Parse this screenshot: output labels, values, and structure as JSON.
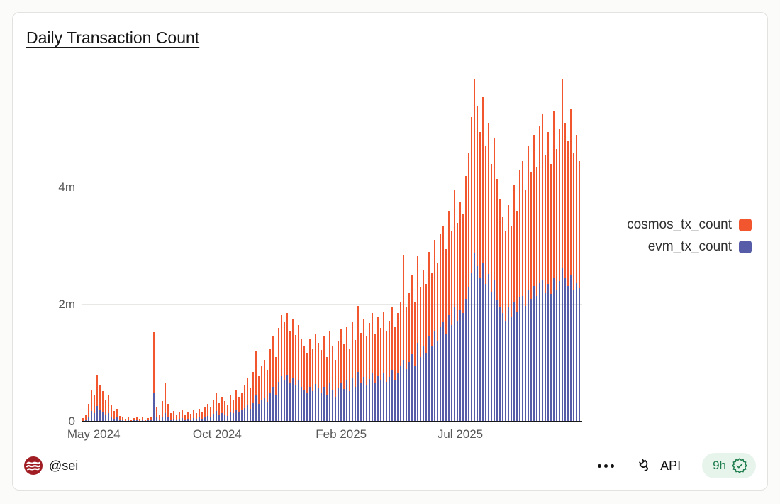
{
  "card": {
    "title": "Daily Transaction Count",
    "footer": {
      "author": "@sei",
      "api_label": "API",
      "updated_badge": "9h"
    }
  },
  "colors": {
    "cosmos": "#F1562F",
    "evm": "#575CA8",
    "sei_logo_red": "#A01D23",
    "badge_green": "#1C7C4B",
    "badge_bg": "#E7F4EC",
    "axis_line": "#1A1A1A",
    "grid": "#E8E8E6",
    "tick_text": "#575757"
  },
  "chart_data": {
    "type": "bar",
    "stacked": true,
    "title": "Daily Transaction Count",
    "unit": "daily transactions, values in millions (m)",
    "x_tick_labels": [
      "May 2024",
      "Oct 2024",
      "Feb 2025",
      "Jul 2025"
    ],
    "x_tick_positions": [
      0.023,
      0.27,
      0.518,
      0.756
    ],
    "x_range": [
      "May 2024",
      "Oct 2025"
    ],
    "y_tick_labels": [
      "0",
      "2m",
      "4m"
    ],
    "y_ticks_m": [
      0,
      2,
      4
    ],
    "ylim_m": [
      0,
      6
    ],
    "grid": true,
    "legend_position": "right",
    "series": [
      {
        "name": "cosmos_tx_count",
        "color": "#F1562F",
        "values_m": [
          0.05,
          0.09,
          0.21,
          0.37,
          0.31,
          0.53,
          0.42,
          0.36,
          0.26,
          0.3,
          0.19,
          0.13,
          0.15,
          0.07,
          0.05,
          0.04,
          0.06,
          0.03,
          0.04,
          0.06,
          0.04,
          0.05,
          0.03,
          0.04,
          0.06,
          1.03,
          0.18,
          0.09,
          0.27,
          0.5,
          0.22,
          0.1,
          0.13,
          0.08,
          0.11,
          0.14,
          0.08,
          0.12,
          0.09,
          0.13,
          0.1,
          0.15,
          0.11,
          0.16,
          0.2,
          0.17,
          0.25,
          0.32,
          0.21,
          0.27,
          0.23,
          0.18,
          0.28,
          0.24,
          0.34,
          0.26,
          0.31,
          0.39,
          0.47,
          0.36,
          0.53,
          0.75,
          0.48,
          0.59,
          0.65,
          0.54,
          0.75,
          0.85,
          0.65,
          0.92,
          1.04,
          0.98,
          1.06,
          0.89,
          1.0,
          0.86,
          0.95,
          0.82,
          0.75,
          0.7,
          0.82,
          0.73,
          0.86,
          0.78,
          0.72,
          0.85,
          0.65,
          0.89,
          0.74,
          0.63,
          0.8,
          0.91,
          0.76,
          0.92,
          0.73,
          0.96,
          0.8,
          1.12,
          0.87,
          0.99,
          0.83,
          0.95,
          1.03,
          0.85,
          1.0,
          0.9,
          1.04,
          0.87,
          0.96,
          1.07,
          0.9,
          1.02,
          1.11,
          1.8,
          1.05,
          1.18,
          1.35,
          1.1,
          1.49,
          1.2,
          1.3,
          1.17,
          1.45,
          1.27,
          1.55,
          1.32,
          1.58,
          1.65,
          1.45,
          1.78,
          1.6,
          2.0,
          1.68,
          1.85,
          1.7,
          2.1,
          2.3,
          2.65,
          2.98,
          2.75,
          2.5,
          2.85,
          2.35,
          2.58,
          2.18,
          2.43,
          2.07,
          1.85,
          1.65,
          1.53,
          1.75,
          1.55,
          2.0,
          1.72,
          2.18,
          2.3,
          1.97,
          2.45,
          2.15,
          2.58,
          2.2,
          2.67,
          2.83,
          2.35,
          2.6,
          2.22,
          2.85,
          2.4,
          2.6,
          3.24,
          2.65,
          2.48,
          2.85,
          2.35,
          2.52,
          2.17
        ]
      },
      {
        "name": "evm_tx_count",
        "color": "#575CA8",
        "values_m": [
          0.01,
          0.03,
          0.09,
          0.18,
          0.14,
          0.27,
          0.2,
          0.16,
          0.12,
          0.15,
          0.09,
          0.05,
          0.07,
          0.03,
          0.02,
          0.01,
          0.02,
          0.01,
          0.02,
          0.03,
          0.01,
          0.02,
          0.01,
          0.02,
          0.02,
          0.5,
          0.07,
          0.03,
          0.08,
          0.15,
          0.08,
          0.04,
          0.05,
          0.03,
          0.05,
          0.06,
          0.04,
          0.05,
          0.04,
          0.06,
          0.05,
          0.07,
          0.05,
          0.08,
          0.1,
          0.09,
          0.13,
          0.18,
          0.11,
          0.15,
          0.12,
          0.1,
          0.17,
          0.14,
          0.21,
          0.16,
          0.19,
          0.23,
          0.28,
          0.22,
          0.32,
          0.45,
          0.3,
          0.36,
          0.4,
          0.34,
          0.5,
          0.6,
          0.45,
          0.68,
          0.78,
          0.72,
          0.8,
          0.66,
          0.75,
          0.62,
          0.7,
          0.6,
          0.55,
          0.48,
          0.6,
          0.52,
          0.64,
          0.57,
          0.5,
          0.6,
          0.45,
          0.66,
          0.54,
          0.42,
          0.58,
          0.67,
          0.56,
          0.7,
          0.52,
          0.74,
          0.6,
          0.85,
          0.65,
          0.76,
          0.62,
          0.73,
          0.82,
          0.65,
          0.78,
          0.7,
          0.84,
          0.68,
          0.76,
          0.88,
          0.72,
          0.83,
          0.94,
          1.05,
          0.9,
          1.02,
          1.15,
          0.95,
          1.35,
          1.1,
          1.3,
          1.18,
          1.45,
          1.28,
          1.55,
          1.38,
          1.62,
          1.7,
          1.5,
          1.82,
          1.65,
          1.95,
          1.72,
          1.9,
          1.85,
          2.1,
          2.3,
          2.55,
          2.88,
          2.65,
          2.45,
          2.7,
          2.35,
          2.52,
          2.22,
          2.42,
          2.08,
          1.95,
          1.85,
          1.72,
          1.95,
          1.8,
          2.05,
          1.88,
          2.12,
          2.15,
          1.98,
          2.25,
          2.1,
          2.32,
          2.15,
          2.38,
          2.42,
          2.2,
          2.35,
          2.18,
          2.45,
          2.25,
          2.4,
          2.62,
          2.45,
          2.32,
          2.5,
          2.25,
          2.38,
          2.28
        ]
      }
    ]
  }
}
